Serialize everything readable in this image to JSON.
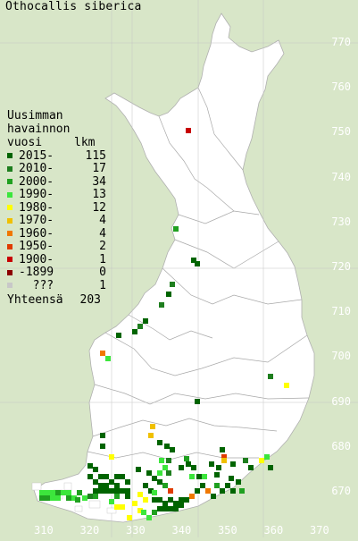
{
  "title": "Othocallis siberica",
  "legend": {
    "header_line1": "Uusimman",
    "header_line2": "havainnon",
    "header_col1": "vuosi",
    "header_col2": "lkm",
    "rows": [
      {
        "label": "2015-",
        "count": "115",
        "color": "#006400"
      },
      {
        "label": "2010-",
        "count": "17",
        "color": "#1e7e1e"
      },
      {
        "label": "2000-",
        "count": "34",
        "color": "#20a020"
      },
      {
        "label": "1990-",
        "count": "13",
        "color": "#3ce63c"
      },
      {
        "label": "1980-",
        "count": "12",
        "color": "#ffff00"
      },
      {
        "label": "1970-",
        "count": "4",
        "color": "#f0c000"
      },
      {
        "label": "1960-",
        "count": "4",
        "color": "#f07800"
      },
      {
        "label": "1950-",
        "count": "2",
        "color": "#e03c00"
      },
      {
        "label": "1900-",
        "count": "1",
        "color": "#c80000"
      },
      {
        "label": "-1899",
        "count": "0",
        "color": "#8c0000"
      },
      {
        "label": "???",
        "count": "1",
        "color": "#c8c8c8"
      }
    ],
    "total_label": "Yhteensä",
    "total_count": "203"
  },
  "y_ticks": [
    "770",
    "760",
    "750",
    "740",
    "730",
    "720",
    "710",
    "700",
    "690",
    "680",
    "670"
  ],
  "x_ticks": [
    "310",
    "320",
    "330",
    "340",
    "350",
    "360",
    "370"
  ],
  "colors": {
    "background": "#d8e6c8",
    "land": "#ffffff",
    "borders": "#a0a0a0"
  }
}
